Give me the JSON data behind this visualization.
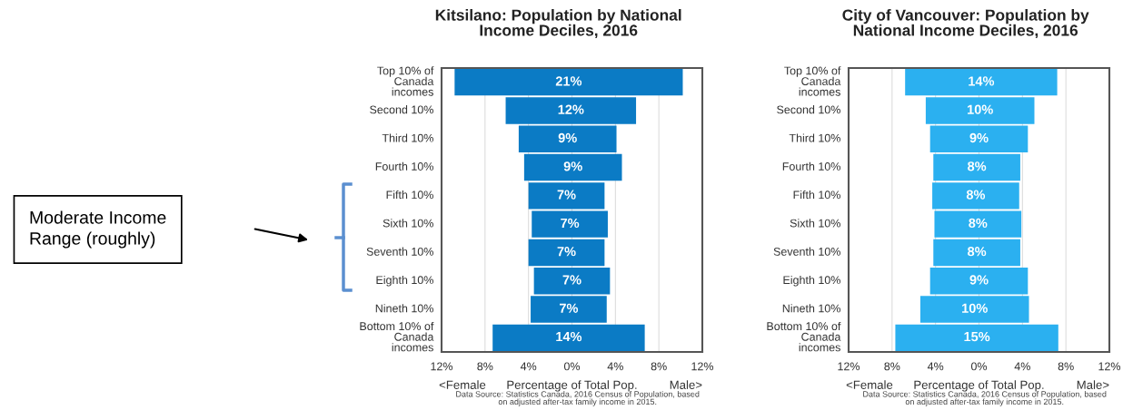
{
  "chart_data": [
    {
      "type": "bar",
      "orientation": "horizontal",
      "title": "Kitsilano: Population by National Income Deciles, 2016",
      "xlabel": "Percentage of Total Pop.",
      "categories": [
        "Top 10% of Canada incomes",
        "Second 10%",
        "Third 10%",
        "Fourth 10%",
        "Fifth 10%",
        "Sixth 10%",
        "Seventh 10%",
        "Eighth 10%",
        "Nineth 10%",
        "Bottom 10% of Canada incomes"
      ],
      "values": [
        21,
        12,
        9,
        9,
        7,
        7,
        7,
        7,
        7,
        14
      ],
      "base": [
        -10.8,
        -6.1,
        -4.9,
        -4.4,
        -4.0,
        -3.7,
        -4.0,
        -3.5,
        -3.8,
        -7.3
      ],
      "value_labels": [
        "21%",
        "12%",
        "9%",
        "9%",
        "7%",
        "7%",
        "7%",
        "7%",
        "7%",
        "14%"
      ],
      "color": "#0b7bc5",
      "xlim": [
        -12,
        12
      ],
      "xticks": [
        {
          "value": -12,
          "label": "12%"
        },
        {
          "value": -8,
          "label": "8%"
        },
        {
          "value": -4,
          "label": "4%"
        },
        {
          "value": 0,
          "label": "0%"
        },
        {
          "value": 4,
          "label": "4%"
        },
        {
          "value": 8,
          "label": "8%"
        },
        {
          "value": 12,
          "label": "12%"
        }
      ],
      "grid": "x",
      "annotations": [
        "<Female",
        "Male>",
        "Data Source: Statistics Canada, 2016 Census of Population, based on adjusted after-tax family income in 2015.",
        "Moderate Income Range (roughly)"
      ]
    },
    {
      "type": "bar",
      "orientation": "horizontal",
      "title": "City of Vancouver: Population by National Income Deciles, 2016",
      "xlabel": "Percentage of Total Pop.",
      "categories": [
        "Top 10% of Canada incomes",
        "Second 10%",
        "Third 10%",
        "Fourth 10%",
        "Fifth 10%",
        "Sixth 10%",
        "Seventh 10%",
        "Eighth 10%",
        "Nineth 10%",
        "Bottom 10% of Canada incomes"
      ],
      "values": [
        14,
        10,
        9,
        8,
        8,
        8,
        8,
        9,
        10,
        15
      ],
      "base": [
        -6.8,
        -4.9,
        -4.5,
        -4.2,
        -4.3,
        -4.1,
        -4.2,
        -4.5,
        -5.4,
        -7.7
      ],
      "value_labels": [
        "14%",
        "10%",
        "9%",
        "8%",
        "8%",
        "8%",
        "8%",
        "9%",
        "10%",
        "15%"
      ],
      "color": "#2bb0f0",
      "xlim": [
        -12,
        12
      ],
      "xticks": [
        {
          "value": -12,
          "label": "12%"
        },
        {
          "value": -8,
          "label": "8%"
        },
        {
          "value": -4,
          "label": "4%"
        },
        {
          "value": 0,
          "label": "0%"
        },
        {
          "value": 4,
          "label": "4%"
        },
        {
          "value": 8,
          "label": "8%"
        },
        {
          "value": 12,
          "label": "12%"
        }
      ],
      "grid": "x",
      "annotations": [
        "<Female",
        "Male>",
        "Data Source: Statistics Canada, 2016 Census of Population, based on adjusted after-tax family income in 2015."
      ]
    }
  ]
}
